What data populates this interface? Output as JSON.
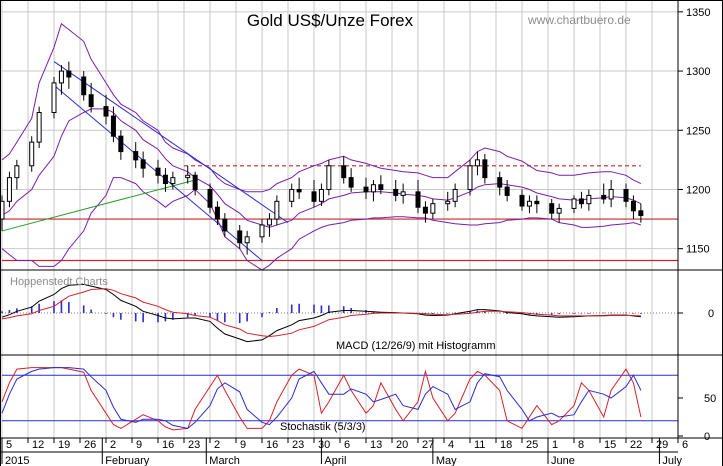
{
  "chart_data": {
    "type": "candlestick",
    "title": "Gold US$/Unze Forex",
    "source": "www.chartbuero.de",
    "watermark": "Hoppenstedt Charts",
    "price_axis": {
      "ticks": [
        1150,
        1200,
        1250,
        1300,
        1350
      ],
      "range": [
        1132,
        1360
      ]
    },
    "horizontal_lines": [
      {
        "value": 1220,
        "style": "dashed",
        "color": "#c0292b"
      },
      {
        "value": 1175,
        "style": "solid",
        "color": "#c0292b"
      },
      {
        "value": 1140,
        "style": "solid",
        "color": "#c0292b"
      }
    ],
    "trendlines": [
      {
        "from": [
          "2015-01-19",
          1288
        ],
        "to": [
          "2015-03-16",
          1140
        ],
        "color": "#2c2cd0"
      },
      {
        "from": [
          "2015-01-19",
          1308
        ],
        "to": [
          "2015-03-23",
          1172
        ],
        "color": "#2c2cd0"
      },
      {
        "from": [
          "2015-01-05",
          1165
        ],
        "to": [
          "2015-02-26",
          1208
        ],
        "color": "#2a9a2a"
      }
    ],
    "dates": [
      "2015-01-05",
      "2015-01-07",
      "2015-01-09",
      "2015-01-13",
      "2015-01-15",
      "2015-01-19",
      "2015-01-21",
      "2015-01-23",
      "2015-01-27",
      "2015-01-29",
      "2015-02-02",
      "2015-02-04",
      "2015-02-06",
      "2015-02-10",
      "2015-02-12",
      "2015-02-16",
      "2015-02-18",
      "2015-02-20",
      "2015-02-24",
      "2015-02-26",
      "2015-03-02",
      "2015-03-04",
      "2015-03-06",
      "2015-03-10",
      "2015-03-12",
      "2015-03-16",
      "2015-03-18",
      "2015-03-20",
      "2015-03-24",
      "2015-03-26",
      "2015-03-30",
      "2015-04-01",
      "2015-04-03",
      "2015-04-07",
      "2015-04-09",
      "2015-04-13",
      "2015-04-15",
      "2015-04-17",
      "2015-04-21",
      "2015-04-23",
      "2015-04-27",
      "2015-04-29",
      "2015-05-01",
      "2015-05-05",
      "2015-05-07",
      "2015-05-11",
      "2015-05-13",
      "2015-05-15",
      "2015-05-19",
      "2015-05-21",
      "2015-05-25",
      "2015-05-27",
      "2015-05-29",
      "2015-06-02",
      "2015-06-04",
      "2015-06-08",
      "2015-06-10",
      "2015-06-12",
      "2015-06-16",
      "2015-06-18",
      "2015-06-22",
      "2015-06-24",
      "2015-06-26"
    ],
    "ohlc": [
      [
        1175,
        1195,
        1165,
        1190
      ],
      [
        1190,
        1215,
        1185,
        1210
      ],
      [
        1210,
        1225,
        1200,
        1220
      ],
      [
        1220,
        1245,
        1215,
        1240
      ],
      [
        1240,
        1270,
        1235,
        1265
      ],
      [
        1265,
        1295,
        1260,
        1290
      ],
      [
        1290,
        1305,
        1280,
        1300
      ],
      [
        1300,
        1308,
        1285,
        1295
      ],
      [
        1295,
        1300,
        1275,
        1280
      ],
      [
        1280,
        1290,
        1265,
        1270
      ],
      [
        1270,
        1280,
        1255,
        1262
      ],
      [
        1262,
        1270,
        1240,
        1245
      ],
      [
        1245,
        1250,
        1225,
        1232
      ],
      [
        1232,
        1240,
        1218,
        1225
      ],
      [
        1225,
        1232,
        1210,
        1218
      ],
      [
        1218,
        1225,
        1205,
        1212
      ],
      [
        1212,
        1218,
        1198,
        1205
      ],
      [
        1205,
        1215,
        1200,
        1210
      ],
      [
        1210,
        1220,
        1205,
        1212
      ],
      [
        1212,
        1215,
        1195,
        1200
      ],
      [
        1200,
        1205,
        1180,
        1185
      ],
      [
        1185,
        1190,
        1170,
        1175
      ],
      [
        1175,
        1180,
        1160,
        1165
      ],
      [
        1165,
        1170,
        1150,
        1155
      ],
      [
        1155,
        1165,
        1145,
        1160
      ],
      [
        1160,
        1175,
        1155,
        1170
      ],
      [
        1170,
        1180,
        1160,
        1175
      ],
      [
        1175,
        1195,
        1170,
        1190
      ],
      [
        1190,
        1205,
        1185,
        1200
      ],
      [
        1200,
        1210,
        1192,
        1198
      ],
      [
        1198,
        1208,
        1185,
        1190
      ],
      [
        1190,
        1205,
        1186,
        1200
      ],
      [
        1200,
        1225,
        1195,
        1220
      ],
      [
        1220,
        1228,
        1205,
        1210
      ],
      [
        1210,
        1218,
        1198,
        1202
      ],
      [
        1202,
        1210,
        1192,
        1198
      ],
      [
        1198,
        1208,
        1190,
        1204
      ],
      [
        1204,
        1212,
        1196,
        1200
      ],
      [
        1200,
        1208,
        1190,
        1195
      ],
      [
        1195,
        1205,
        1188,
        1198
      ],
      [
        1198,
        1208,
        1180,
        1185
      ],
      [
        1185,
        1190,
        1172,
        1180
      ],
      [
        1180,
        1192,
        1175,
        1188
      ],
      [
        1188,
        1198,
        1182,
        1190
      ],
      [
        1190,
        1205,
        1185,
        1200
      ],
      [
        1200,
        1225,
        1195,
        1220
      ],
      [
        1220,
        1232,
        1212,
        1225
      ],
      [
        1225,
        1230,
        1205,
        1210
      ],
      [
        1210,
        1215,
        1195,
        1202
      ],
      [
        1202,
        1208,
        1190,
        1195
      ],
      [
        1195,
        1200,
        1182,
        1186
      ],
      [
        1186,
        1195,
        1180,
        1190
      ],
      [
        1190,
        1195,
        1180,
        1188
      ],
      [
        1188,
        1192,
        1175,
        1180
      ],
      [
        1180,
        1188,
        1172,
        1184
      ],
      [
        1184,
        1195,
        1180,
        1192
      ],
      [
        1192,
        1198,
        1184,
        1188
      ],
      [
        1188,
        1200,
        1182,
        1195
      ],
      [
        1195,
        1205,
        1188,
        1192
      ],
      [
        1192,
        1208,
        1185,
        1200
      ],
      [
        1200,
        1205,
        1185,
        1190
      ],
      [
        1190,
        1195,
        1175,
        1182
      ],
      [
        1182,
        1188,
        1172,
        1178
      ]
    ],
    "bollinger": {
      "upper": [
        1225,
        1230,
        1240,
        1260,
        1290,
        1320,
        1340,
        1335,
        1325,
        1310,
        1290,
        1280,
        1272,
        1265,
        1258,
        1250,
        1240,
        1235,
        1230,
        1225,
        1218,
        1210,
        1205,
        1200,
        1198,
        1198,
        1200,
        1205,
        1210,
        1215,
        1220,
        1222,
        1225,
        1228,
        1225,
        1222,
        1220,
        1218,
        1216,
        1215,
        1214,
        1212,
        1210,
        1210,
        1215,
        1225,
        1232,
        1235,
        1232,
        1228,
        1224,
        1220,
        1216,
        1214,
        1212,
        1212,
        1213,
        1214,
        1215,
        1215,
        1212,
        1208,
        1205
      ],
      "middle": [
        1178,
        1182,
        1190,
        1200,
        1212,
        1228,
        1245,
        1258,
        1265,
        1268,
        1268,
        1265,
        1258,
        1250,
        1242,
        1234,
        1226,
        1220,
        1215,
        1210,
        1203,
        1196,
        1188,
        1180,
        1174,
        1170,
        1168,
        1170,
        1174,
        1180,
        1185,
        1188,
        1192,
        1195,
        1197,
        1198,
        1198,
        1198,
        1197,
        1196,
        1195,
        1194,
        1192,
        1191,
        1193,
        1198,
        1202,
        1204,
        1205,
        1204,
        1202,
        1200,
        1197,
        1194,
        1192,
        1191,
        1191,
        1192,
        1193,
        1194,
        1193,
        1191,
        1188
      ],
      "lower": [
        1150,
        1145,
        1140,
        1140,
        1135,
        1135,
        1140,
        1150,
        1165,
        1180,
        1195,
        1210,
        1210,
        1205,
        1198,
        1190,
        1185,
        1190,
        1195,
        1200,
        1188,
        1175,
        1160,
        1150,
        1140,
        1132,
        1136,
        1142,
        1150,
        1158,
        1165,
        1168,
        1170,
        1172,
        1174,
        1175,
        1176,
        1176,
        1177,
        1177,
        1176,
        1176,
        1174,
        1172,
        1171,
        1170,
        1170,
        1171,
        1172,
        1174,
        1175,
        1176,
        1176,
        1175,
        1172,
        1170,
        1168,
        1168,
        1169,
        1170,
        1171,
        1172,
        1170
      ]
    },
    "macd": {
      "label": "MACD (12/26/9) mit Histogramm",
      "ticks": [
        0
      ],
      "range": [
        -1,
        1
      ],
      "macd": [
        -0.1,
        -0.04,
        0.04,
        0.14,
        0.28,
        0.44,
        0.58,
        0.66,
        0.68,
        0.64,
        0.56,
        0.44,
        0.3,
        0.16,
        0.04,
        -0.06,
        -0.12,
        -0.14,
        -0.12,
        -0.12,
        -0.2,
        -0.36,
        -0.5,
        -0.62,
        -0.68,
        -0.64,
        -0.54,
        -0.42,
        -0.28,
        -0.18,
        -0.12,
        -0.06,
        0.02,
        0.06,
        0.06,
        0.04,
        0.03,
        0.02,
        0.01,
        0.0,
        -0.02,
        -0.05,
        -0.06,
        -0.05,
        -0.02,
        0.04,
        0.08,
        0.08,
        0.05,
        0.01,
        -0.02,
        -0.05,
        -0.07,
        -0.09,
        -0.1,
        -0.09,
        -0.08,
        -0.07,
        -0.06,
        -0.05,
        -0.05,
        -0.07,
        -0.09
      ],
      "signal": [
        -0.14,
        -0.11,
        -0.07,
        -0.02,
        0.06,
        0.16,
        0.28,
        0.4,
        0.5,
        0.56,
        0.58,
        0.54,
        0.46,
        0.36,
        0.26,
        0.16,
        0.08,
        0.02,
        -0.02,
        -0.06,
        -0.1,
        -0.18,
        -0.28,
        -0.38,
        -0.48,
        -0.54,
        -0.56,
        -0.54,
        -0.48,
        -0.4,
        -0.32,
        -0.24,
        -0.16,
        -0.1,
        -0.06,
        -0.03,
        -0.01,
        0.0,
        0.0,
        0.0,
        -0.01,
        -0.02,
        -0.03,
        -0.04,
        -0.03,
        -0.01,
        0.02,
        0.04,
        0.04,
        0.03,
        0.01,
        -0.01,
        -0.03,
        -0.05,
        -0.07,
        -0.07,
        -0.07,
        -0.07,
        -0.07,
        -0.06,
        -0.06,
        -0.06,
        -0.07
      ]
    },
    "stochastic": {
      "label": "Stochastik (5/3/3)",
      "ticks": [
        0,
        50
      ],
      "range": [
        0,
        100
      ],
      "reference_lines": [
        20,
        80
      ],
      "k": [
        45,
        70,
        88,
        90,
        90,
        90,
        90,
        88,
        84,
        60,
        30,
        15,
        10,
        22,
        28,
        20,
        12,
        8,
        10,
        35,
        65,
        80,
        60,
        25,
        10,
        10,
        20,
        45,
        80,
        88,
        80,
        30,
        45,
        80,
        60,
        30,
        40,
        70,
        35,
        20,
        45,
        85,
        50,
        20,
        30,
        75,
        85,
        80,
        60,
        20,
        10,
        25,
        40,
        15,
        20,
        40,
        70,
        60,
        25,
        60,
        88,
        70,
        25
      ],
      "d": [
        30,
        55,
        75,
        85,
        88,
        90,
        90,
        90,
        88,
        78,
        60,
        38,
        22,
        18,
        22,
        22,
        20,
        14,
        10,
        18,
        40,
        62,
        70,
        58,
        35,
        18,
        15,
        25,
        50,
        75,
        85,
        70,
        55,
        55,
        62,
        55,
        45,
        48,
        55,
        40,
        35,
        55,
        65,
        55,
        35,
        45,
        70,
        82,
        78,
        60,
        35,
        20,
        25,
        30,
        25,
        28,
        45,
        60,
        55,
        50,
        65,
        80,
        60
      ]
    },
    "x_axis": {
      "day_ticks": [
        "5",
        "12",
        "19",
        "26",
        "2",
        "9",
        "16",
        "23",
        "2",
        "9",
        "16",
        "23",
        "30",
        "6",
        "13",
        "20",
        "27",
        "4",
        "11",
        "18",
        "25",
        "1",
        "8",
        "15",
        "22",
        "29",
        "6"
      ],
      "months": [
        "2015",
        "February",
        "March",
        "April",
        "May",
        "June",
        "July"
      ]
    }
  }
}
